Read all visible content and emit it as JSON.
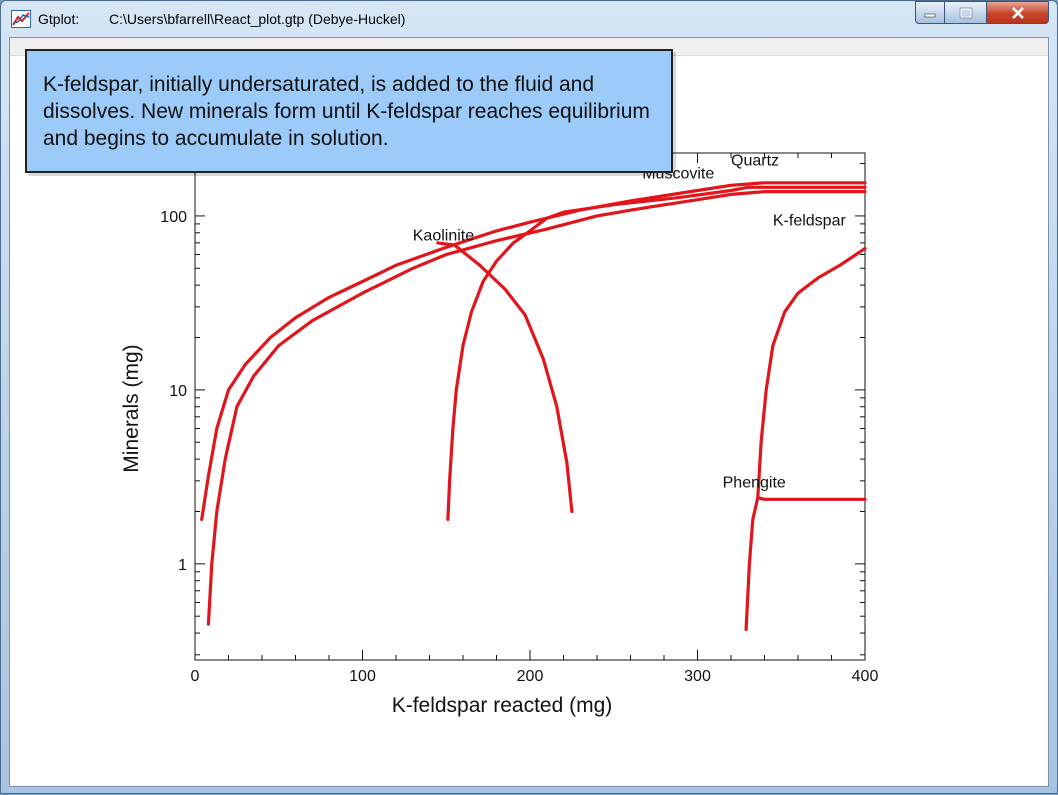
{
  "window": {
    "app_name": "Gtplot:",
    "title": "C:\\Users\\bfarrell\\React_plot.gtp  (Debye-Huckel)",
    "menu_items": [
      "",
      "",
      "",
      ""
    ]
  },
  "callout": {
    "text": "K-feldspar, initially undersaturated, is added to the fluid and dissolves. New minerals form until K-feldspar reaches equilibrium and begins to accumulate in solution."
  },
  "colors": {
    "series": "#e0161c",
    "callout_bg": "#9ccbf9"
  },
  "chart_data": {
    "type": "line",
    "xlabel": "K-feldspar reacted (mg)",
    "ylabel": "Minerals (mg)",
    "xlim": [
      0,
      400
    ],
    "ylim": [
      0.28,
      230
    ],
    "yscale": "log",
    "x_ticks": [
      0,
      100,
      200,
      300,
      400
    ],
    "y_ticks": [
      1,
      10,
      100
    ],
    "grid": false,
    "series": [
      {
        "name": "Quartz",
        "label_at": [
          320,
          195
        ],
        "points": [
          [
            4,
            1.8
          ],
          [
            8,
            3.2
          ],
          [
            13,
            6
          ],
          [
            20,
            10
          ],
          [
            30,
            14
          ],
          [
            45,
            20
          ],
          [
            60,
            26
          ],
          [
            80,
            34
          ],
          [
            100,
            42
          ],
          [
            120,
            52
          ],
          [
            150,
            66
          ],
          [
            180,
            82
          ],
          [
            200,
            92
          ],
          [
            230,
            108
          ],
          [
            260,
            122
          ],
          [
            300,
            140
          ],
          [
            320,
            150
          ],
          [
            340,
            155
          ],
          [
            400,
            155
          ]
        ]
      },
      {
        "name": "Kaolinite",
        "label_at": [
          130,
          72
        ],
        "points": [
          [
            8,
            0.45
          ],
          [
            10,
            1
          ],
          [
            13,
            2
          ],
          [
            18,
            4
          ],
          [
            25,
            8
          ],
          [
            35,
            12
          ],
          [
            50,
            18
          ],
          [
            70,
            25
          ],
          [
            100,
            36
          ],
          [
            130,
            50
          ],
          [
            150,
            60
          ],
          [
            180,
            72
          ],
          [
            210,
            84
          ],
          [
            240,
            100
          ],
          [
            270,
            112
          ],
          [
            300,
            124
          ],
          [
            320,
            133
          ],
          [
            340,
            138
          ],
          [
            400,
            138
          ]
        ]
      },
      {
        "name": "Muscovite",
        "label_at": [
          267,
          164
        ],
        "points": [
          [
            151,
            1.8
          ],
          [
            152,
            3
          ],
          [
            154,
            6
          ],
          [
            156,
            10
          ],
          [
            160,
            18
          ],
          [
            165,
            28
          ],
          [
            172,
            42
          ],
          [
            180,
            55
          ],
          [
            190,
            70
          ],
          [
            200,
            82
          ],
          [
            210,
            97
          ],
          [
            220,
            105
          ],
          [
            250,
            116
          ],
          [
            290,
            128
          ],
          [
            320,
            140
          ],
          [
            330,
            146
          ],
          [
            400,
            146
          ]
        ]
      },
      {
        "name": "",
        "points": [
          [
            145,
            70
          ],
          [
            155,
            68
          ],
          [
            170,
            52
          ],
          [
            185,
            38
          ],
          [
            197,
            27
          ],
          [
            208,
            15
          ],
          [
            216,
            8
          ],
          [
            222,
            3.8
          ],
          [
            225,
            2
          ]
        ]
      },
      {
        "name": "K-feldspar",
        "label_at": [
          345,
          88
        ],
        "points": [
          [
            329,
            0.42
          ],
          [
            331,
            1
          ],
          [
            333,
            1.8
          ],
          [
            336,
            2.4
          ],
          [
            338,
            5
          ],
          [
            341,
            10
          ],
          [
            345,
            18
          ],
          [
            352,
            28
          ],
          [
            360,
            36
          ],
          [
            372,
            44
          ],
          [
            385,
            52
          ],
          [
            400,
            65
          ]
        ]
      },
      {
        "name": "Phengite",
        "label_at": [
          315,
          2.75
        ],
        "points": [
          [
            336,
            2.4
          ],
          [
            340,
            2.35
          ],
          [
            400,
            2.35
          ]
        ]
      }
    ]
  }
}
